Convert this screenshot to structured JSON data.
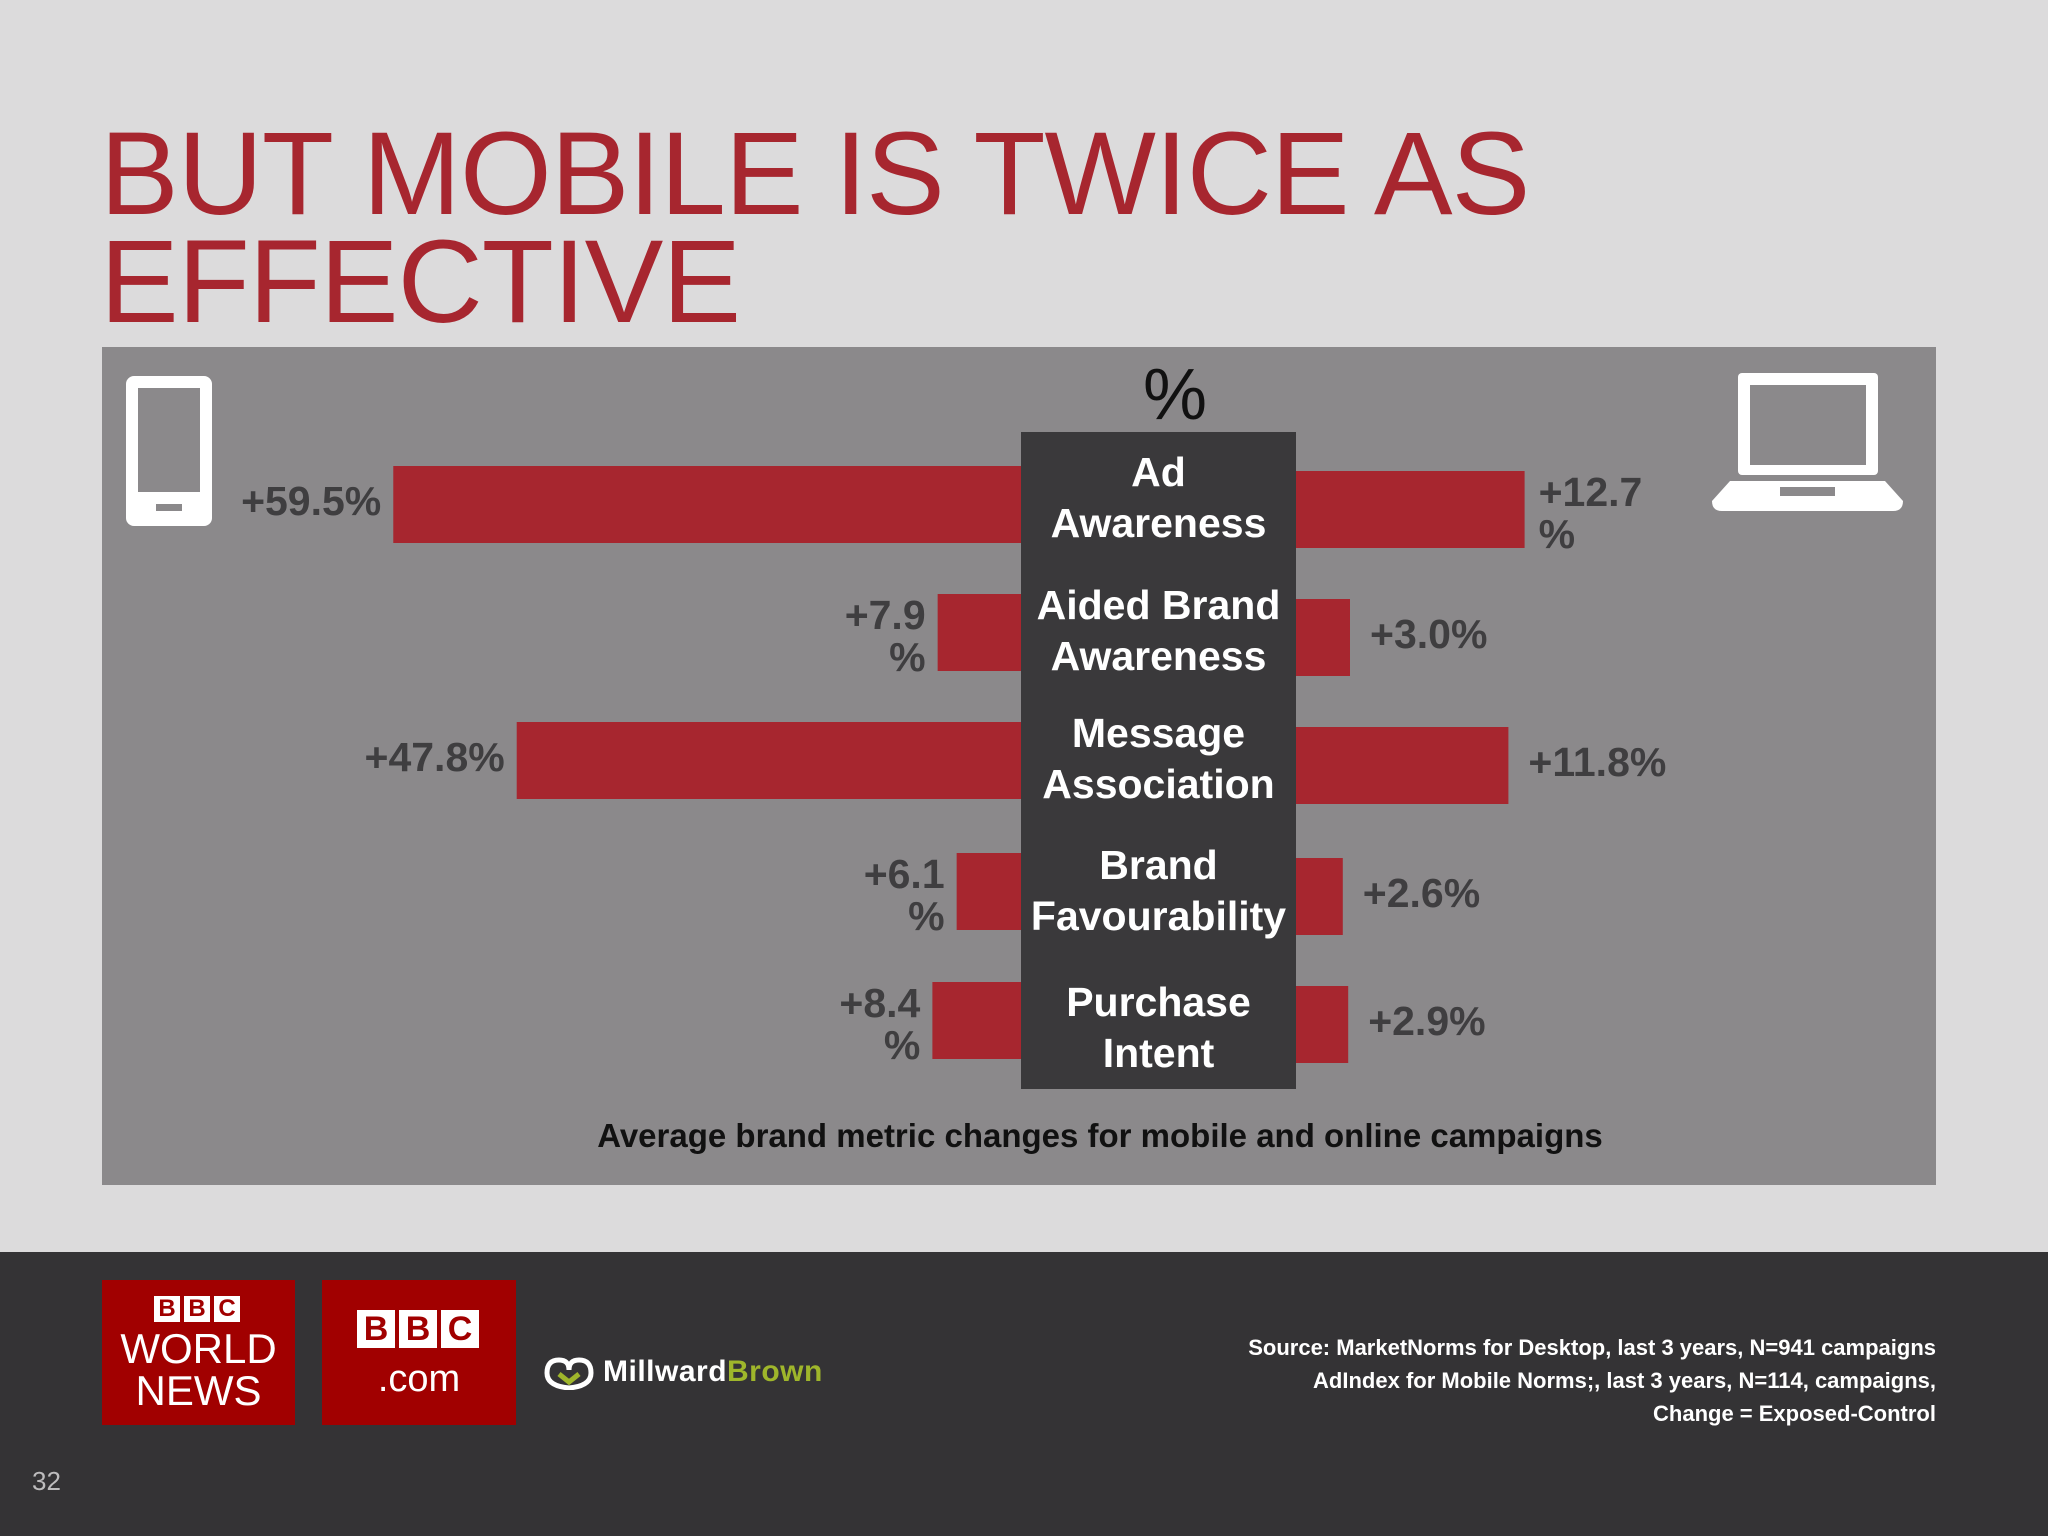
{
  "slide": {
    "title": "BUT MOBILE IS TWICE AS EFFECTIVE",
    "page_number": "32"
  },
  "chart_data": {
    "type": "bar",
    "orientation": "horizontal-diverging",
    "title": "",
    "unit_label": "%",
    "caption": "Average brand metric changes for mobile and online campaigns",
    "categories": [
      "Ad Awareness",
      "Aided Brand Awareness",
      "Message Association",
      "Brand Favourability",
      "Purchase Intent"
    ],
    "series": [
      {
        "name": "Mobile",
        "side": "left",
        "values": [
          59.5,
          7.9,
          47.8,
          6.1,
          8.4
        ],
        "labels": [
          "+59.5%",
          "+7.9 %",
          "+47.8%",
          "+6.1 %",
          "+8.4 %"
        ]
      },
      {
        "name": "Online",
        "side": "right",
        "values": [
          12.7,
          3.0,
          11.8,
          2.6,
          2.9
        ],
        "labels": [
          "+12.7 %",
          "+3.0%",
          "+11.8%",
          "+2.6%",
          "+2.9%"
        ]
      }
    ],
    "icons": {
      "left": "mobile-phone-icon",
      "right": "laptop-icon"
    },
    "colors": {
      "bar": "#a7262f",
      "center_column": "#3a393b",
      "panel": "#8b898b"
    }
  },
  "footer": {
    "logos": {
      "bbc_world_news": {
        "blocks": [
          "B",
          "B",
          "C"
        ],
        "line1": "WORLD",
        "line2": "NEWS"
      },
      "bbc_com": {
        "blocks": [
          "B",
          "B",
          "C"
        ],
        "line1": ".com"
      },
      "millward_brown": {
        "part1": "Millward",
        "part2": "Brown"
      }
    },
    "source_lines": [
      "Source:  MarketNorms for Desktop, last 3 years, N=941 campaigns",
      "AdIndex for Mobile Norms;, last 3 years, N=114, campaigns,",
      "Change = Exposed-Control"
    ]
  },
  "colors": {
    "brand_red": "#a7262f",
    "footer_bg": "#343335",
    "bbc_red": "#a10000",
    "mb_green": "#9fb62b"
  }
}
